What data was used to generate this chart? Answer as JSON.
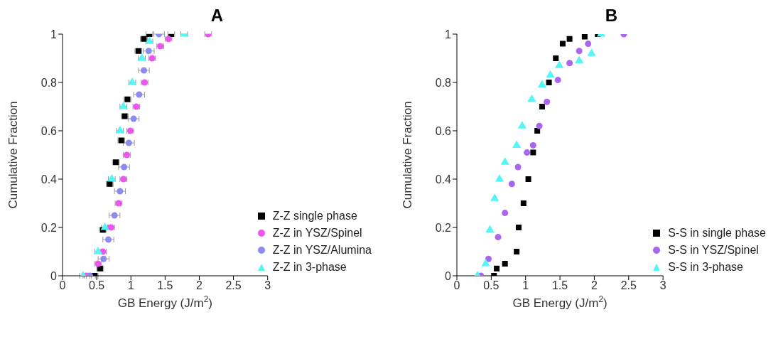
{
  "chart_data": [
    {
      "type": "scatter",
      "title": "A",
      "xlabel": "GB Energy (J/m$^{2}$)",
      "ylabel": "Cumulative Fraction",
      "xlim": [
        0,
        3
      ],
      "xticks": [
        0,
        0.5,
        1,
        1.5,
        2,
        2.5,
        3
      ],
      "ylim": [
        0,
        1
      ],
      "yticks": [
        0,
        0.2,
        0.4,
        0.6,
        0.8,
        1
      ],
      "grid": false,
      "legend": "bottom right",
      "series": [
        {
          "name": "Z-Z single phase",
          "color": "#000000",
          "marker": "square",
          "x": [
            0.47,
            0.55,
            0.59,
            0.69,
            0.78,
            0.86,
            0.91,
            0.95,
            1.11,
            1.19,
            1.27,
            1.59
          ],
          "values": [
            0,
            0.03,
            0.19,
            0.38,
            0.47,
            0.56,
            0.66,
            0.73,
            0.93,
            0.98,
            1.0,
            1.0
          ],
          "xerrors": [
            0.05,
            0.05,
            0.05,
            0.05,
            0.05,
            0.05,
            0.05,
            0.05,
            0.05,
            0.05,
            0.05,
            0.05
          ]
        },
        {
          "name": "Z-Z in YSZ/Spinel",
          "color": "#ee55ee",
          "marker": "circle",
          "x": [
            0.35,
            0.52,
            0.59,
            0.71,
            0.82,
            0.89,
            0.94,
            0.99,
            1.08,
            1.2,
            1.31,
            1.43,
            1.55,
            2.13
          ],
          "values": [
            0,
            0.05,
            0.1,
            0.2,
            0.3,
            0.4,
            0.5,
            0.6,
            0.7,
            0.8,
            0.9,
            0.95,
            0.98,
            1.0
          ],
          "xerrors": [
            0.05,
            0.05,
            0.05,
            0.05,
            0.05,
            0.05,
            0.05,
            0.05,
            0.05,
            0.05,
            0.05,
            0.05,
            0.05,
            0.05
          ]
        },
        {
          "name": "Z-Z in YSZ/Alumina",
          "color": "#8c8cf0",
          "marker": "circle",
          "x": [
            0.4,
            0.6,
            0.67,
            0.76,
            0.84,
            0.9,
            0.97,
            1.04,
            1.12,
            1.19,
            1.26,
            1.41
          ],
          "values": [
            0,
            0.07,
            0.15,
            0.25,
            0.35,
            0.45,
            0.55,
            0.65,
            0.75,
            0.85,
            0.93,
            1.0
          ],
          "xerrors": [
            0.08,
            0.08,
            0.08,
            0.08,
            0.08,
            0.08,
            0.08,
            0.08,
            0.08,
            0.08,
            0.08,
            0.08
          ]
        },
        {
          "name": "Z-Z in 3-phase",
          "color": "#55f5f5",
          "marker": "triangle",
          "x": [
            0.3,
            0.52,
            0.62,
            0.72,
            0.84,
            0.89,
            1.02,
            1.16,
            1.27,
            1.78
          ],
          "values": [
            0,
            0.1,
            0.2,
            0.4,
            0.6,
            0.7,
            0.8,
            0.9,
            0.97,
            1.0
          ],
          "xerrors": [
            0.05,
            0.05,
            0.05,
            0.05,
            0.05,
            0.05,
            0.05,
            0.05,
            0.05,
            0.05
          ]
        }
      ]
    },
    {
      "type": "scatter",
      "title": "B",
      "xlabel": "GB Energy (J/m$^{2}$)",
      "ylabel": "Cumulative Fraction",
      "xlim": [
        0,
        3
      ],
      "xticks": [
        0,
        0.5,
        1,
        1.5,
        2,
        2.5,
        3
      ],
      "ylim": [
        0,
        1
      ],
      "yticks": [
        0,
        0.2,
        0.4,
        0.6,
        0.8,
        1
      ],
      "grid": false,
      "legend": "bottom right",
      "series": [
        {
          "name": "S-S in single phase",
          "color": "#000000",
          "marker": "square",
          "x": [
            0.54,
            0.58,
            0.7,
            0.87,
            0.9,
            0.97,
            1.04,
            1.11,
            1.17,
            1.24,
            1.34,
            1.44,
            1.54,
            1.64,
            1.86,
            2.05
          ],
          "values": [
            0,
            0.03,
            0.05,
            0.1,
            0.2,
            0.3,
            0.4,
            0.51,
            0.6,
            0.7,
            0.8,
            0.9,
            0.96,
            0.98,
            0.99,
            1.0
          ]
        },
        {
          "name": "S-S in YSZ/Spinel",
          "color": "#aa66ee",
          "marker": "circle",
          "x": [
            0.35,
            0.46,
            0.6,
            0.7,
            0.8,
            0.89,
            1.02,
            1.11,
            1.2,
            1.31,
            1.47,
            1.64,
            1.78,
            1.91,
            2.43
          ],
          "values": [
            0,
            0.07,
            0.16,
            0.26,
            0.38,
            0.45,
            0.51,
            0.54,
            0.62,
            0.72,
            0.81,
            0.88,
            0.93,
            0.96,
            1.0
          ]
        },
        {
          "name": "S-S in 3-phase",
          "color": "#55f5f5",
          "marker": "triangle",
          "x": [
            0.3,
            0.42,
            0.48,
            0.55,
            0.62,
            0.7,
            0.87,
            0.95,
            1.09,
            1.24,
            1.36,
            1.49,
            1.78,
            1.96,
            2.1
          ],
          "values": [
            0,
            0.05,
            0.19,
            0.32,
            0.4,
            0.47,
            0.54,
            0.62,
            0.73,
            0.79,
            0.83,
            0.87,
            0.89,
            0.92,
            1.0
          ]
        }
      ]
    }
  ]
}
